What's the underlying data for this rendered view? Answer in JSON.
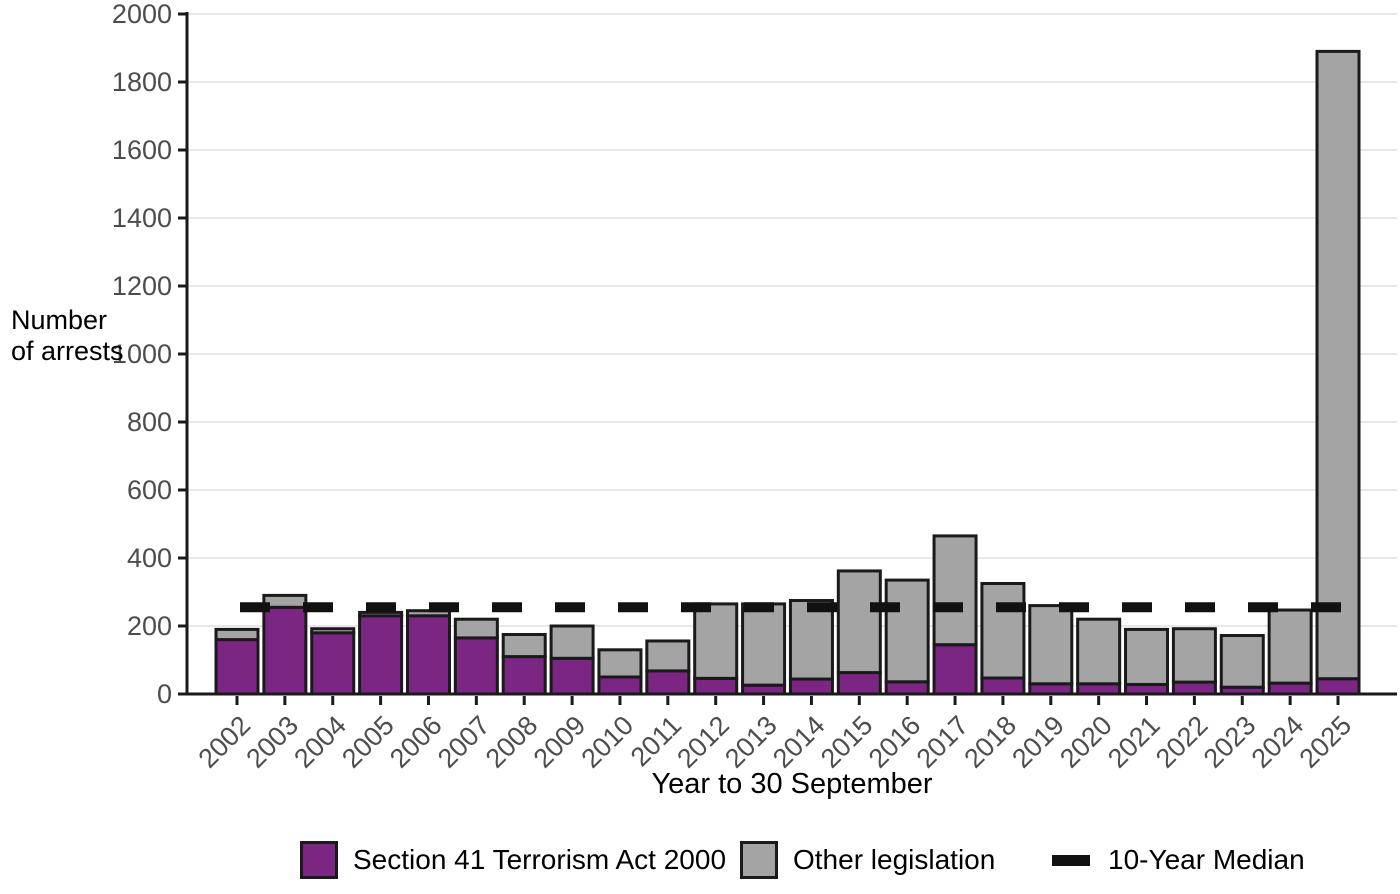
{
  "chart_data": {
    "type": "bar",
    "stacked": true,
    "xlabel": "Year to 30 September",
    "ylabel": "Number of arrests",
    "ylim": [
      0,
      2000
    ],
    "ytick_step": 200,
    "grid": true,
    "legend_position": "bottom",
    "categories": [
      "2002",
      "2003",
      "2004",
      "2005",
      "2006",
      "2007",
      "2008",
      "2009",
      "2010",
      "2011",
      "2012",
      "2013",
      "2014",
      "2015",
      "2016",
      "2017",
      "2018",
      "2019",
      "2020",
      "2021",
      "2022",
      "2023",
      "2024",
      "2025"
    ],
    "series": [
      {
        "name": "Section 41 Terrorism Act 2000",
        "color": "#7A2682",
        "values": [
          160,
          255,
          180,
          230,
          230,
          165,
          110,
          105,
          50,
          68,
          46,
          26,
          44,
          63,
          36,
          145,
          47,
          30,
          30,
          28,
          35,
          20,
          32,
          45
        ]
      },
      {
        "name": "Other legislation",
        "color": "#A4A4A4",
        "values": [
          30,
          35,
          12,
          10,
          15,
          55,
          65,
          95,
          80,
          88,
          219,
          239,
          231,
          299,
          299,
          320,
          278,
          230,
          190,
          162,
          157,
          152,
          215,
          1845
        ]
      }
    ],
    "median_line": {
      "label": "10-Year Median",
      "value": 255,
      "color": "#111111"
    },
    "colors": {
      "outline": "#1a1a1a",
      "grid": "#e8e8e8",
      "tick_text": "#4d4d4d"
    }
  }
}
